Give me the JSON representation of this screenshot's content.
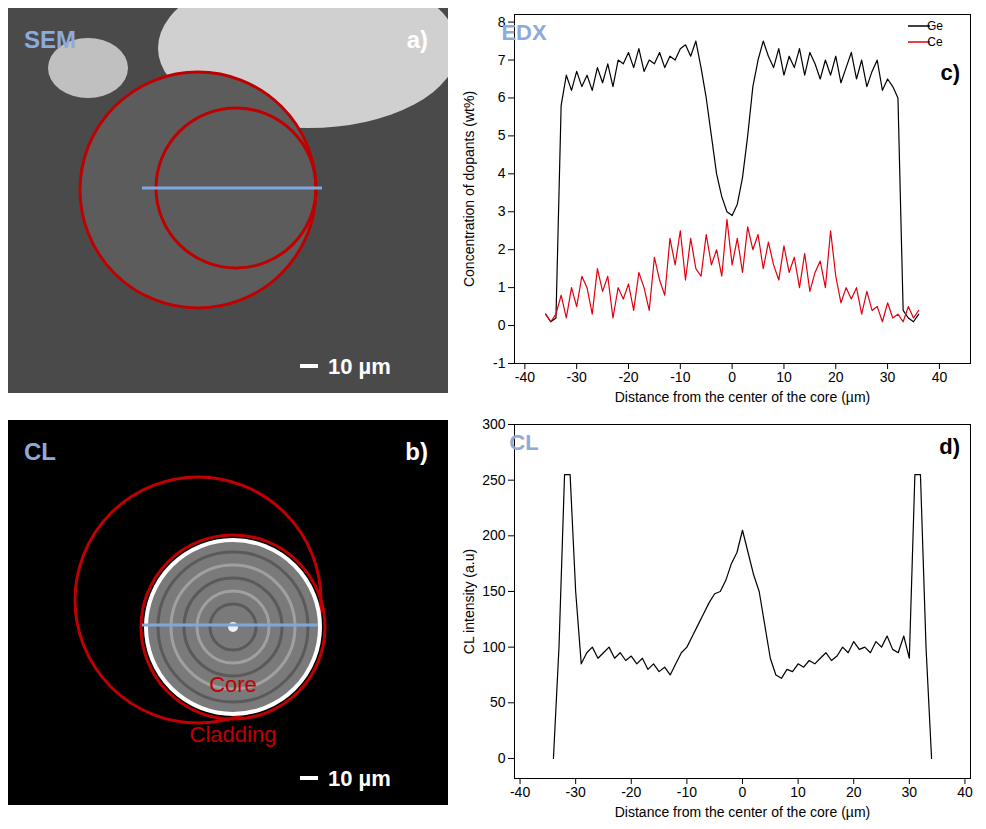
{
  "chart_data": [
    {
      "type": "line",
      "title": "EDX",
      "panel_label": "c)",
      "x_label": "Distance from the center of the core (µm)",
      "y_label": "Concentration of dopants (wt%)",
      "x": [
        -36,
        -35,
        -34,
        -33,
        -32,
        -31,
        -30,
        -29,
        -28,
        -27,
        -26,
        -25,
        -24,
        -23,
        -22,
        -21,
        -20,
        -19,
        -18,
        -17,
        -16,
        -15,
        -14,
        -13,
        -12,
        -11,
        -10,
        -9,
        -8,
        -7,
        -6,
        -5,
        -4,
        -3,
        -2,
        -1,
        0,
        1,
        2,
        3,
        4,
        5,
        6,
        7,
        8,
        9,
        10,
        11,
        12,
        13,
        14,
        15,
        16,
        17,
        18,
        19,
        20,
        21,
        22,
        23,
        24,
        25,
        26,
        27,
        28,
        29,
        30,
        31,
        32,
        33,
        34,
        35,
        36
      ],
      "series": [
        {
          "name": "Ge",
          "color": "#000000",
          "values": [
            0.3,
            0.1,
            0.2,
            5.8,
            6.6,
            6.2,
            6.7,
            6.3,
            6.6,
            6.2,
            6.8,
            6.4,
            6.9,
            6.3,
            7.0,
            6.9,
            7.2,
            6.8,
            7.3,
            6.7,
            7.0,
            6.9,
            7.2,
            6.8,
            7.1,
            7.0,
            7.3,
            7.4,
            7.1,
            7.5,
            6.8,
            6.0,
            5.0,
            4.0,
            3.4,
            3.0,
            2.9,
            3.2,
            3.9,
            5.0,
            6.3,
            7.0,
            7.5,
            7.1,
            6.8,
            7.3,
            6.6,
            7.1,
            6.8,
            7.3,
            6.6,
            7.2,
            6.9,
            6.5,
            7.0,
            6.6,
            7.1,
            6.4,
            6.8,
            7.2,
            6.5,
            7.0,
            6.3,
            6.7,
            7.0,
            6.2,
            6.5,
            6.3,
            6.0,
            0.4,
            0.2,
            0.1,
            0.3
          ]
        },
        {
          "name": "Ce",
          "color": "#e0000f",
          "values": [
            0.3,
            0.1,
            0.3,
            0.8,
            0.2,
            1.0,
            0.5,
            1.3,
            1.0,
            0.3,
            1.5,
            0.9,
            1.3,
            0.2,
            1.0,
            0.7,
            1.1,
            0.4,
            1.4,
            1.0,
            0.4,
            1.8,
            1.2,
            0.8,
            2.3,
            1.6,
            2.5,
            1.2,
            2.3,
            1.5,
            1.3,
            2.4,
            1.6,
            2.0,
            1.3,
            2.8,
            1.6,
            2.3,
            1.4,
            2.6,
            2.0,
            2.4,
            1.5,
            2.2,
            1.6,
            1.2,
            2.1,
            1.4,
            1.8,
            1.0,
            1.9,
            0.9,
            1.4,
            1.7,
            1.0,
            2.5,
            1.3,
            0.6,
            1.0,
            0.7,
            1.0,
            0.3,
            0.9,
            0.4,
            0.5,
            0.1,
            0.6,
            0.2,
            0.3,
            0.1,
            0.5,
            0.2,
            0.4
          ]
        }
      ],
      "xlim": [
        -42,
        46
      ],
      "xticks": [
        -40,
        -30,
        -20,
        -10,
        0,
        10,
        20,
        30,
        40
      ],
      "ylim": [
        -1,
        8.2
      ],
      "yticks": [
        -1,
        0,
        1,
        2,
        3,
        4,
        5,
        6,
        7,
        8
      ],
      "grid": false,
      "legend": "top-right"
    },
    {
      "type": "line",
      "title": "CL",
      "panel_label": "d)",
      "x_label": "Distance from the center of the core (µm)",
      "y_label": "CL intensity (a.u)",
      "x": [
        -34,
        -33,
        -32,
        -31,
        -30,
        -29,
        -28,
        -27,
        -26,
        -25,
        -24,
        -23,
        -22,
        -21,
        -20,
        -19,
        -18,
        -17,
        -16,
        -15,
        -14,
        -13,
        -12,
        -11,
        -10,
        -9,
        -8,
        -7,
        -6,
        -5,
        -4,
        -3,
        -2,
        -1,
        0,
        1,
        2,
        3,
        4,
        5,
        6,
        7,
        8,
        9,
        10,
        11,
        12,
        13,
        14,
        15,
        16,
        17,
        18,
        19,
        20,
        21,
        22,
        23,
        24,
        25,
        26,
        27,
        28,
        29,
        30,
        31,
        32,
        33,
        34
      ],
      "series": [
        {
          "color": "#000000",
          "values": [
            0,
            100,
            255,
            255,
            150,
            85,
            95,
            100,
            90,
            95,
            100,
            90,
            95,
            88,
            92,
            85,
            90,
            80,
            85,
            78,
            82,
            75,
            85,
            95,
            100,
            110,
            120,
            130,
            140,
            148,
            150,
            160,
            175,
            185,
            205,
            185,
            165,
            150,
            120,
            90,
            75,
            72,
            80,
            78,
            85,
            82,
            88,
            85,
            90,
            95,
            88,
            92,
            100,
            95,
            105,
            98,
            100,
            95,
            105,
            100,
            110,
            98,
            95,
            110,
            90,
            255,
            255,
            100,
            0
          ]
        }
      ],
      "xlim": [
        -41,
        41
      ],
      "xticks": [
        -40,
        -30,
        -20,
        -10,
        0,
        10,
        20,
        30,
        40
      ],
      "ylim": [
        -18,
        300
      ],
      "yticks": [
        0,
        50,
        100,
        150,
        200,
        250,
        300
      ],
      "grid": false
    }
  ],
  "images": [
    {
      "label": "SEM",
      "panel_label": "a)",
      "scale_bar": "10 µm"
    },
    {
      "label": "CL",
      "panel_label": "b)",
      "scale_bar": "10 µm",
      "annotations": [
        "Core",
        "Cladding"
      ]
    }
  ]
}
